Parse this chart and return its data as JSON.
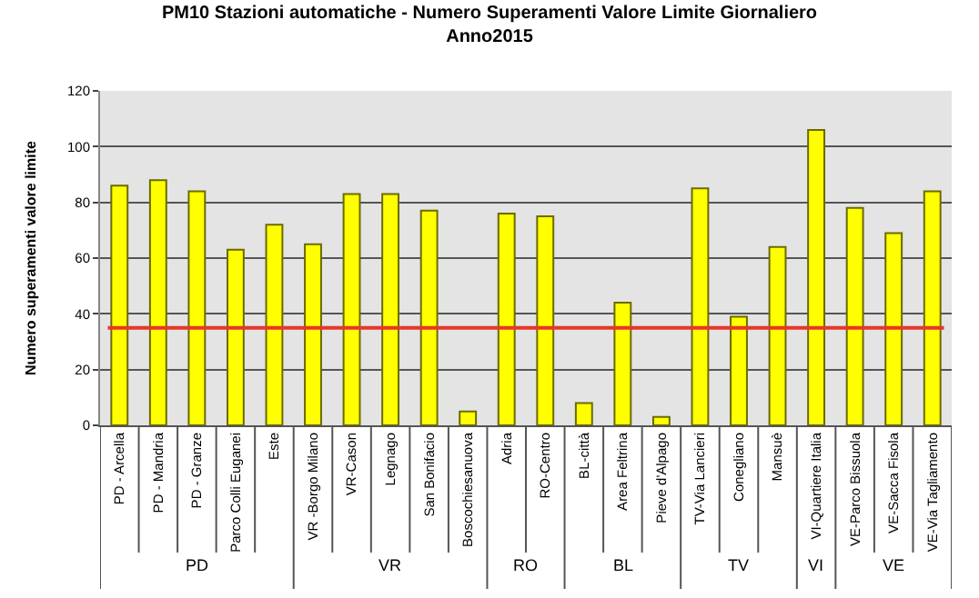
{
  "chart_data": {
    "type": "bar",
    "title": "PM10 Stazioni automatiche - Numero Superamenti Valore Limite Giornaliero\nAnno2015",
    "ylabel": "Numero superamenti valore limite",
    "categories": [
      "PD - Arcella",
      "PD - Mandria",
      "PD - Granze",
      "Parco Colli Euganei",
      "Este",
      "VR -Borgo Milano",
      "VR-Cason",
      "Legnago",
      "San Bonifacio",
      "Boscochiesanuova",
      "Adria",
      "RO-Centro",
      "BL-città",
      "Area Feltrina",
      "Pieve d'Alpago",
      "TV-Via Lancieri",
      "Conegliano",
      "Mansuè",
      "VI-Quartiere Italia",
      "VE-Parco Bissuola",
      "VE-Sacca Fisola",
      "VE-Via Tagliamento"
    ],
    "values": [
      86,
      88,
      84,
      63,
      72,
      65,
      83,
      83,
      77,
      5,
      76,
      75,
      8,
      44,
      3,
      85,
      39,
      64,
      106,
      78,
      69,
      84
    ],
    "color": "#ffff00",
    "ylim": [
      0,
      120
    ],
    "yticks": [
      0,
      20,
      40,
      60,
      80,
      100,
      120
    ],
    "grid": "y",
    "ref_lines": [
      {
        "axis": "y",
        "value": 35,
        "color": "#e8362a"
      }
    ],
    "annotations": [
      "PD",
      "VR",
      "RO",
      "BL",
      "TV",
      "VI",
      "VE"
    ]
  }
}
